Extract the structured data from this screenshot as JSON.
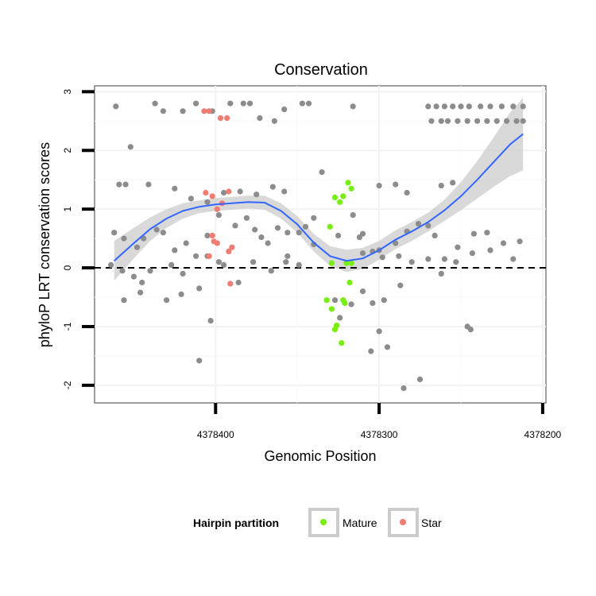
{
  "chart_data": {
    "type": "scatter",
    "title": "Conservation",
    "xlabel": "Genomic Position",
    "ylabel": "phyloP LRT conservation scores",
    "x_reversed": true,
    "xlim": [
      4378474,
      4378198
    ],
    "ylim": [
      -2.3,
      3.1
    ],
    "x_ticks": [
      {
        "value": 4378400,
        "label": "4378400"
      },
      {
        "value": 4378300,
        "label": "4378300"
      },
      {
        "value": 4378200,
        "label": "4378200"
      }
    ],
    "y_ticks": [
      {
        "value": -2,
        "label": "-2"
      },
      {
        "value": -1,
        "label": "-1"
      },
      {
        "value": 0,
        "label": "0"
      },
      {
        "value": 1,
        "label": "1"
      },
      {
        "value": 2,
        "label": "2"
      },
      {
        "value": 3,
        "label": "3"
      }
    ],
    "grid": true,
    "reference_line": {
      "y": 0,
      "style": "dashed"
    },
    "legend": {
      "title": "Hairpin partition",
      "position": "bottom",
      "entries": [
        {
          "label": "Mature",
          "color": "#77ee11"
        },
        {
          "label": "Star",
          "color": "#f07c72"
        }
      ]
    },
    "colors": {
      "other": "#8c8c8c",
      "mature": "#77ee11",
      "star": "#f07c72",
      "smooth": "#3366ff",
      "ribbon": "#cccccc"
    },
    "smooth": {
      "x": [
        4378462,
        4378450,
        4378440,
        4378430,
        4378420,
        4378410,
        4378400,
        4378390,
        4378380,
        4378370,
        4378360,
        4378350,
        4378340,
        4378330,
        4378320,
        4378310,
        4378300,
        4378290,
        4378280,
        4378270,
        4378260,
        4378250,
        4378240,
        4378230,
        4378220,
        4378212
      ],
      "y": [
        0.12,
        0.42,
        0.66,
        0.84,
        0.97,
        1.04,
        1.08,
        1.1,
        1.12,
        1.11,
        0.97,
        0.74,
        0.43,
        0.2,
        0.12,
        0.16,
        0.3,
        0.48,
        0.62,
        0.78,
        0.98,
        1.22,
        1.5,
        1.8,
        2.1,
        2.28
      ],
      "ci_low": [
        -0.22,
        0.16,
        0.46,
        0.68,
        0.84,
        0.93,
        0.97,
        0.99,
        1.01,
        0.99,
        0.84,
        0.6,
        0.28,
        0.03,
        -0.07,
        -0.02,
        0.14,
        0.32,
        0.46,
        0.62,
        0.8,
        0.98,
        1.18,
        1.38,
        1.56,
        1.66
      ],
      "ci_high": [
        0.46,
        0.68,
        0.86,
        1.0,
        1.1,
        1.15,
        1.19,
        1.21,
        1.23,
        1.23,
        1.1,
        0.88,
        0.58,
        0.37,
        0.31,
        0.34,
        0.46,
        0.64,
        0.78,
        0.94,
        1.16,
        1.46,
        1.82,
        2.22,
        2.64,
        2.9
      ]
    },
    "series": [
      {
        "partition": "other",
        "points": [
          [
            4378461,
            2.75
          ],
          [
            4378452,
            2.06
          ],
          [
            4378437,
            2.8
          ],
          [
            4378432,
            2.67
          ],
          [
            4378420,
            2.67
          ],
          [
            4378412,
            2.8
          ],
          [
            4378402,
            2.67
          ],
          [
            4378391,
            2.8
          ],
          [
            4378383,
            2.8
          ],
          [
            4378379,
            2.8
          ],
          [
            4378373,
            2.55
          ],
          [
            4378364,
            2.5
          ],
          [
            4378358,
            2.7
          ],
          [
            4378347,
            2.8
          ],
          [
            4378343,
            2.8
          ],
          [
            4378316,
            2.75
          ],
          [
            4378335,
            1.63
          ],
          [
            4378459,
            1.42
          ],
          [
            4378455,
            1.42
          ],
          [
            4378441,
            1.42
          ],
          [
            4378425,
            1.35
          ],
          [
            4378415,
            1.18
          ],
          [
            4378405,
            1.12
          ],
          [
            4378395,
            1.28
          ],
          [
            4378385,
            1.3
          ],
          [
            4378375,
            1.25
          ],
          [
            4378365,
            1.38
          ],
          [
            4378358,
            1.3
          ],
          [
            4378300,
            1.4
          ],
          [
            4378290,
            1.42
          ],
          [
            4378283,
            1.28
          ],
          [
            4378262,
            1.4
          ],
          [
            4378255,
            1.45
          ],
          [
            4378462,
            0.6
          ],
          [
            4378456,
            0.5
          ],
          [
            4378448,
            0.35
          ],
          [
            4378444,
            0.5
          ],
          [
            4378436,
            0.65
          ],
          [
            4378432,
            0.6
          ],
          [
            4378425,
            0.3
          ],
          [
            4378418,
            0.42
          ],
          [
            4378412,
            0.2
          ],
          [
            4378405,
            0.55
          ],
          [
            4378398,
            0.1
          ],
          [
            4378388,
            0.72
          ],
          [
            4378381,
            0.85
          ],
          [
            4378376,
            0.65
          ],
          [
            4378372,
            0.52
          ],
          [
            4378368,
            0.42
          ],
          [
            4378362,
            0.68
          ],
          [
            4378356,
            0.2
          ],
          [
            4378349,
            0.6
          ],
          [
            4378345,
            0.7
          ],
          [
            4378340,
            0.4
          ],
          [
            4378325,
            0.55
          ],
          [
            4378316,
            0.9
          ],
          [
            4378310,
            0.58
          ],
          [
            4378304,
            0.28
          ],
          [
            4378298,
            0.18
          ],
          [
            4378290,
            0.42
          ],
          [
            4378283,
            0.62
          ],
          [
            4378276,
            0.75
          ],
          [
            4378270,
            0.72
          ],
          [
            4378260,
            0.15
          ],
          [
            4378252,
            0.35
          ],
          [
            4378242,
            0.58
          ],
          [
            4378234,
            0.6
          ],
          [
            4378224,
            0.42
          ],
          [
            4378218,
            0.15
          ],
          [
            4378214,
            0.45
          ],
          [
            4378464,
            0.05
          ],
          [
            4378457,
            -0.05
          ],
          [
            4378450,
            -0.15
          ],
          [
            4378445,
            -0.25
          ],
          [
            4378440,
            -0.05
          ],
          [
            4378427,
            0.05
          ],
          [
            4378420,
            -0.1
          ],
          [
            4378405,
            0.2
          ],
          [
            4378395,
            0.05
          ],
          [
            4378386,
            -0.25
          ],
          [
            4378377,
            0.1
          ],
          [
            4378366,
            -0.05
          ],
          [
            4378357,
            0.1
          ],
          [
            4378349,
            0.05
          ],
          [
            4378327,
            -0.55
          ],
          [
            4378317,
            -0.62
          ],
          [
            4378310,
            -0.4
          ],
          [
            4378304,
            -0.6
          ],
          [
            4378297,
            -0.55
          ],
          [
            4378287,
            -0.3
          ],
          [
            4378280,
            0.1
          ],
          [
            4378270,
            0.15
          ],
          [
            4378262,
            -0.1
          ],
          [
            4378253,
            0.1
          ],
          [
            4378243,
            0.25
          ],
          [
            4378456,
            -0.55
          ],
          [
            4378446,
            -0.42
          ],
          [
            4378430,
            -0.55
          ],
          [
            4378421,
            -0.45
          ],
          [
            4378410,
            -0.35
          ],
          [
            4378403,
            -0.9
          ],
          [
            4378410,
            -1.58
          ],
          [
            4378324,
            -0.85
          ],
          [
            4378300,
            -1.08
          ],
          [
            4378305,
            -1.42
          ],
          [
            4378295,
            -1.35
          ],
          [
            4378285,
            -2.05
          ],
          [
            4378275,
            -1.9
          ],
          [
            4378246,
            -1.0
          ],
          [
            4378244,
            -1.05
          ],
          [
            4378340,
            0.85
          ],
          [
            4378356,
            0.6
          ],
          [
            4378398,
            0.9
          ],
          [
            4378300,
            0.3
          ],
          [
            4378310,
            0.25
          ],
          [
            4378312,
            0.52
          ],
          [
            4378288,
            0.2
          ],
          [
            4378266,
            0.55
          ],
          [
            4378232,
            0.3
          ]
        ]
      },
      {
        "partition": "other",
        "points": [
          [
            4378270,
            2.75
          ],
          [
            4378265,
            2.75
          ],
          [
            4378260,
            2.75
          ],
          [
            4378255,
            2.75
          ],
          [
            4378250,
            2.75
          ],
          [
            4378245,
            2.75
          ],
          [
            4378238,
            2.75
          ],
          [
            4378232,
            2.75
          ],
          [
            4378225,
            2.75
          ],
          [
            4378218,
            2.75
          ],
          [
            4378212,
            2.75
          ],
          [
            4378268,
            2.5
          ],
          [
            4378262,
            2.5
          ],
          [
            4378258,
            2.5
          ],
          [
            4378252,
            2.5
          ],
          [
            4378246,
            2.5
          ],
          [
            4378240,
            2.5
          ],
          [
            4378234,
            2.5
          ],
          [
            4378228,
            2.5
          ],
          [
            4378222,
            2.5
          ],
          [
            4378216,
            2.5
          ],
          [
            4378212,
            2.5
          ]
        ]
      },
      {
        "partition": "mature",
        "points": [
          [
            4378330,
            0.7
          ],
          [
            4378327,
            1.2
          ],
          [
            4378324,
            1.12
          ],
          [
            4378322,
            1.22
          ],
          [
            4378319,
            1.45
          ],
          [
            4378317,
            1.35
          ],
          [
            4378329,
            0.08
          ],
          [
            4378320,
            0.08
          ],
          [
            4378317,
            0.08
          ],
          [
            4378318,
            -0.25
          ],
          [
            4378332,
            -0.55
          ],
          [
            4378329,
            -0.7
          ],
          [
            4378326,
            -0.98
          ],
          [
            4378327,
            -1.05
          ],
          [
            4378323,
            -1.28
          ],
          [
            4378322,
            -0.55
          ],
          [
            4378321,
            -0.6
          ]
        ]
      },
      {
        "partition": "star",
        "points": [
          [
            4378407,
            2.67
          ],
          [
            4378404,
            2.67
          ],
          [
            4378397,
            2.55
          ],
          [
            4378393,
            2.55
          ],
          [
            4378406,
            1.28
          ],
          [
            4378402,
            1.22
          ],
          [
            4378399,
            1.0
          ],
          [
            4378396,
            1.1
          ],
          [
            4378392,
            1.3
          ],
          [
            4378402,
            0.55
          ],
          [
            4378401,
            0.45
          ],
          [
            4378399,
            0.42
          ],
          [
            4378390,
            0.35
          ],
          [
            4378392,
            0.28
          ],
          [
            4378404,
            0.2
          ],
          [
            4378391,
            -0.27
          ]
        ]
      }
    ]
  }
}
